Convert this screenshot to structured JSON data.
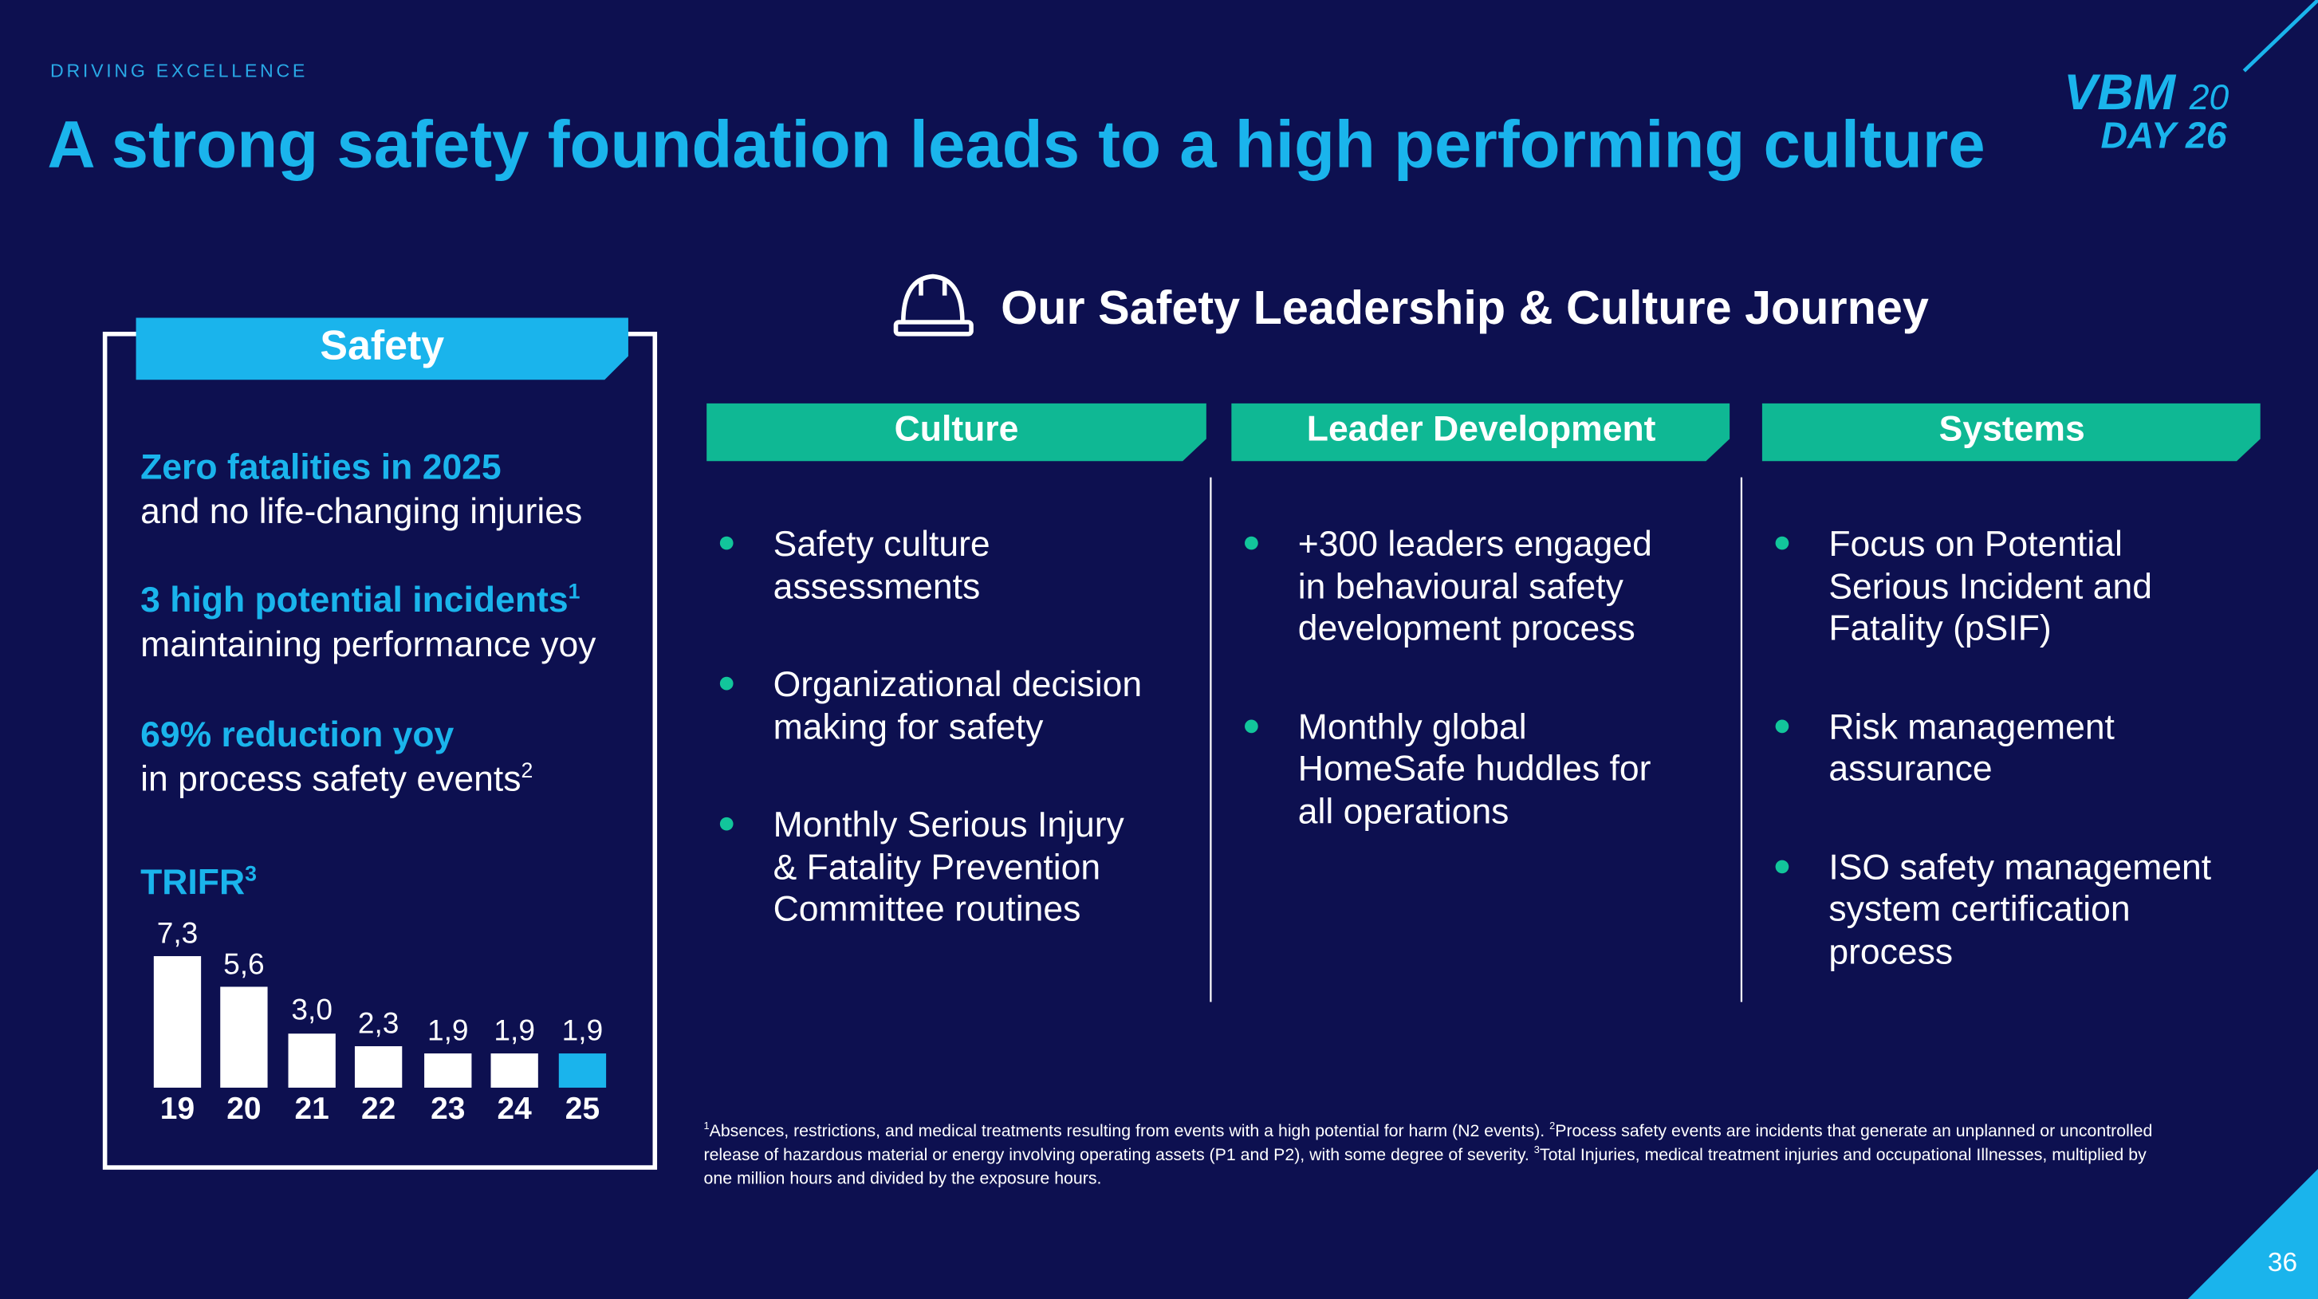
{
  "header": {
    "kicker": "DRIVING EXCELLENCE",
    "title": "A strong safety foundation leads to a high performing culture",
    "logo": {
      "word1": "VBM",
      "num1": "20",
      "word2": "DAY",
      "num2": "26"
    }
  },
  "safety": {
    "title": "Safety",
    "stats": [
      {
        "highlight": "Zero fatalities in 2025",
        "text": "and no life-changing injuries"
      },
      {
        "highlight": "3 high potential incidents",
        "highlight_note": "1",
        "text": "maintaining performance yoy"
      },
      {
        "highlight": "69% reduction yoy",
        "text": "in process safety events",
        "text_note": "2"
      }
    ]
  },
  "chart_data": {
    "type": "bar",
    "title": "TRIFR",
    "title_note": "3",
    "categories": [
      "19",
      "20",
      "21",
      "22",
      "23",
      "24",
      "25"
    ],
    "values": [
      7.3,
      5.6,
      3.0,
      2.3,
      1.9,
      1.9,
      1.9
    ],
    "value_labels": [
      "7,3",
      "5,6",
      "3,0",
      "2,3",
      "1,9",
      "1,9",
      "1,9"
    ],
    "colors": [
      "#ffffff",
      "#ffffff",
      "#ffffff",
      "#ffffff",
      "#ffffff",
      "#ffffff",
      "#1ab4ec"
    ]
  },
  "journey": {
    "title": "Our Safety Leadership & Culture Journey",
    "columns": [
      {
        "title": "Culture",
        "items": [
          "Safety culture assessments",
          "Organizational decision making for safety",
          "Monthly Serious Injury & Fatality Prevention Committee routines"
        ]
      },
      {
        "title": "Leader Development",
        "items": [
          "+300 leaders engaged in behavioural safety development process",
          "Monthly global HomeSafe huddles for all operations"
        ]
      },
      {
        "title": "Systems",
        "items": [
          "Focus on Potential Serious Incident and Fatality (pSIF)",
          "Risk management assurance",
          "ISO safety management system certification process"
        ]
      }
    ]
  },
  "footnotes": [
    {
      "mark": "1",
      "text": "Absences, restrictions, and medical treatments resulting from events with a high potential for harm (N2 events)."
    },
    {
      "mark": "2",
      "text": "Process safety events are incidents that generate an unplanned or uncontrolled release of hazardous material or energy involving operating assets (P1 and P2), with some degree of severity."
    },
    {
      "mark": "3",
      "text": "Total Injuries, medical treatment injuries and occupational Illnesses, multiplied by one million hours and divided by the exposure hours."
    }
  ],
  "page_number": "36"
}
